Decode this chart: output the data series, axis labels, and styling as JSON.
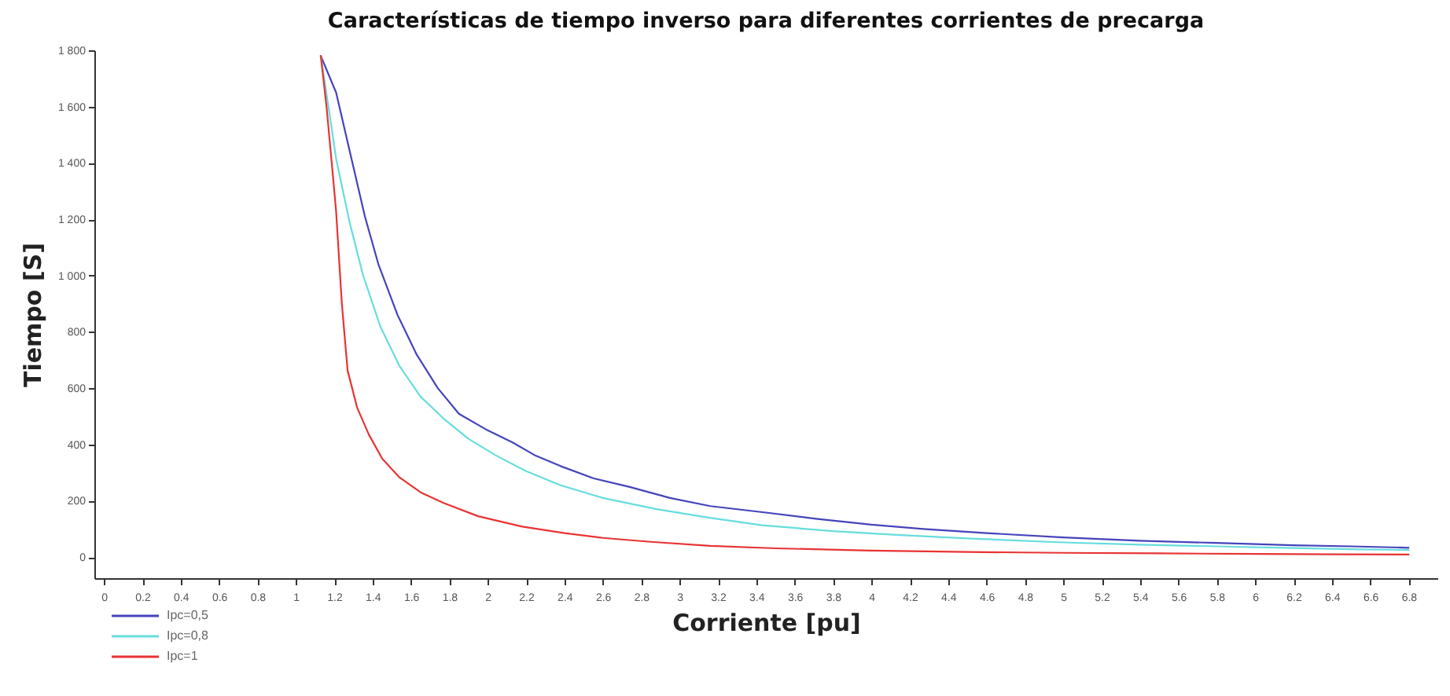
{
  "chart_data": {
    "type": "line",
    "title": "Características de tiempo inverso para diferentes corrientes de precarga",
    "xlabel": "Corriente [pu]",
    "ylabel": "Tiempo [S]",
    "xlim": [
      -0.05,
      6.95
    ],
    "xticks": [
      0,
      0.2,
      0.4,
      0.6,
      0.8,
      1,
      1.2,
      1.4,
      1.6,
      1.8,
      2,
      2.2,
      2.4,
      2.6,
      2.8,
      3,
      3.2,
      3.4,
      3.6,
      3.8,
      4,
      4.2,
      4.4,
      4.6,
      4.8,
      5,
      5.2,
      5.4,
      5.6,
      5.8,
      6,
      6.2,
      6.4,
      6.6,
      6.8
    ],
    "ylim": [
      -75,
      1800
    ],
    "yticks": [
      0,
      200,
      400,
      600,
      800,
      {
        "value": 1000,
        "label": "1 000"
      },
      {
        "value": 1200,
        "label": "1 200"
      },
      {
        "value": 1400,
        "label": "1 400"
      },
      {
        "value": 1600,
        "label": "1 600"
      },
      {
        "value": 1800,
        "label": "1 800"
      }
    ],
    "grid": false,
    "legend": "bottom left",
    "marker": "none",
    "line_style": "solid",
    "series": [
      {
        "name": "Ipc=0,5",
        "color": "#4444bb",
        "x": [
          1.13,
          1.21,
          1.29,
          1.36,
          1.43,
          1.53,
          1.63,
          1.74,
          1.85,
          2,
          2.13,
          2.25,
          2.38,
          2.55,
          2.74,
          2.95,
          3.16,
          3.45,
          3.71,
          4,
          4.27,
          4.6,
          5,
          5.4,
          5.8,
          6.2,
          6.5,
          6.8
        ],
        "values": [
          1780,
          1650,
          1415,
          1210,
          1041,
          860,
          719,
          600,
          509,
          450,
          407,
          360,
          323,
          280,
          249,
          210,
          181,
          158,
          136,
          115,
          100,
          85,
          70,
          58,
          50,
          42,
          38,
          33
        ]
      },
      {
        "name": "Ipc=0,8",
        "color": "#66dddd",
        "x": [
          1.13,
          1.17,
          1.21,
          1.28,
          1.35,
          1.44,
          1.54,
          1.65,
          1.77,
          1.9,
          2.04,
          2.2,
          2.38,
          2.6,
          2.88,
          3.15,
          3.43,
          3.8,
          4.13,
          4.5,
          5,
          5.4,
          5.8,
          6.2,
          6.5,
          6.8
        ],
        "values": [
          1780,
          1600,
          1415,
          1190,
          1002,
          820,
          679,
          570,
          492,
          420,
          362,
          305,
          255,
          210,
          170,
          140,
          113,
          92,
          79,
          66,
          52,
          44,
          38,
          32,
          28,
          25
        ]
      },
      {
        "name": "Ipc=1",
        "color": "#e83333",
        "x": [
          1.13,
          1.16,
          1.19,
          1.21,
          1.24,
          1.27,
          1.32,
          1.38,
          1.45,
          1.54,
          1.65,
          1.77,
          1.95,
          2.18,
          2.4,
          2.6,
          2.85,
          3.16,
          3.5,
          3.99,
          4.5,
          5,
          5.5,
          6,
          6.4,
          6.8
        ],
        "values": [
          1780,
          1600,
          1380,
          1228,
          900,
          662,
          530,
          436,
          350,
          283,
          230,
          192,
          145,
          108,
          85,
          68,
          54,
          40,
          31,
          23,
          18,
          15,
          13,
          11,
          10,
          9
        ]
      }
    ]
  }
}
